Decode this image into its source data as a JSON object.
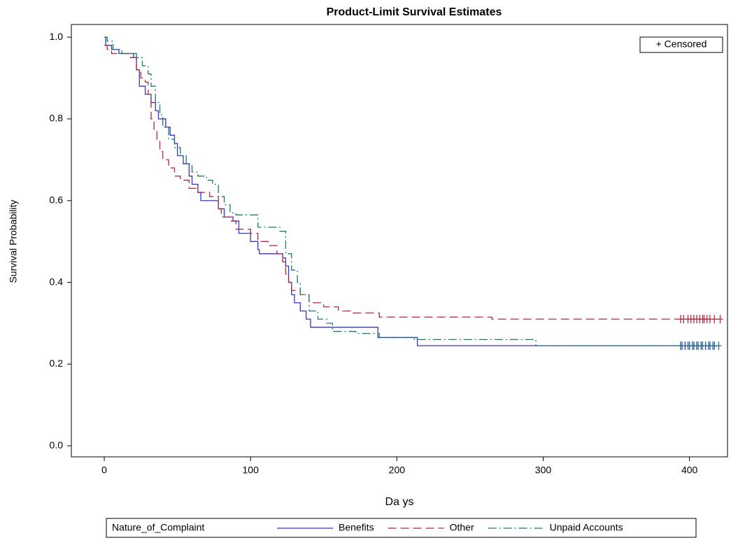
{
  "chart_data": {
    "type": "step",
    "title": "Product-Limit Survival Estimates",
    "x_label": "Da ys",
    "y_label": "Survival Probability",
    "legend_title": "Nature_of_Complaint",
    "censored_label": "+ Censored",
    "xlim": [
      -22.5,
      426
    ],
    "ylim": [
      -0.027,
      1.031
    ],
    "xticks": [
      0,
      100,
      200,
      300,
      400
    ],
    "yticks": [
      {
        "value": 0,
        "label": "0.0"
      },
      0.2,
      0.4,
      0.6,
      0.8,
      {
        "value": 1,
        "label": "1.0"
      }
    ],
    "series": [
      {
        "name": "Benefits",
        "color": "#3535c8",
        "dash": "solid",
        "x": [
          0,
          1,
          5,
          10,
          20,
          22,
          24,
          28,
          32,
          35,
          37,
          42,
          45,
          48,
          50,
          54,
          58,
          60,
          64,
          66,
          78,
          82,
          88,
          92,
          100,
          105,
          106,
          122,
          124,
          126,
          128,
          130,
          134,
          138,
          141,
          187,
          214,
          420
        ],
        "values": [
          1.0,
          0.98,
          0.97,
          0.96,
          0.95,
          0.92,
          0.88,
          0.86,
          0.84,
          0.82,
          0.8,
          0.78,
          0.76,
          0.74,
          0.71,
          0.69,
          0.66,
          0.64,
          0.62,
          0.6,
          0.58,
          0.56,
          0.55,
          0.52,
          0.5,
          0.48,
          0.47,
          0.46,
          0.44,
          0.4,
          0.37,
          0.35,
          0.33,
          0.31,
          0.29,
          0.265,
          0.245,
          0.245
        ],
        "censored_x": [
          394,
          397,
          400,
          403,
          405,
          408,
          411,
          414,
          417
        ]
      },
      {
        "name": "Other",
        "color": "#b0283c",
        "dash": "dashed",
        "x": [
          0,
          2,
          5,
          18,
          22,
          25,
          28,
          30,
          32,
          34,
          36,
          38,
          40,
          44,
          48,
          52,
          58,
          64,
          72,
          78,
          80,
          86,
          90,
          100,
          105,
          112,
          118,
          122,
          124,
          126,
          128,
          134,
          140,
          150,
          160,
          170,
          188,
          265,
          420
        ],
        "values": [
          0.98,
          0.97,
          0.96,
          0.95,
          0.92,
          0.9,
          0.89,
          0.86,
          0.8,
          0.77,
          0.75,
          0.72,
          0.7,
          0.68,
          0.66,
          0.65,
          0.63,
          0.62,
          0.61,
          0.58,
          0.56,
          0.55,
          0.53,
          0.52,
          0.5,
          0.49,
          0.47,
          0.45,
          0.42,
          0.4,
          0.38,
          0.37,
          0.35,
          0.34,
          0.33,
          0.325,
          0.315,
          0.31,
          0.31
        ],
        "censored_x": [
          394,
          396,
          399,
          401,
          403,
          405,
          407,
          409,
          410,
          412,
          414,
          417,
          421
        ]
      },
      {
        "name": "Unpaid Accounts",
        "color": "#177a6e",
        "dash": "dashdot",
        "x": [
          0,
          2,
          6,
          12,
          22,
          26,
          30,
          32,
          35,
          38,
          40,
          44,
          48,
          52,
          56,
          60,
          64,
          70,
          74,
          78,
          82,
          86,
          90,
          105,
          120,
          124,
          128,
          132,
          134,
          140,
          146,
          152,
          156,
          172,
          188,
          212,
          295,
          420
        ],
        "values": [
          1.0,
          0.99,
          0.97,
          0.96,
          0.95,
          0.93,
          0.91,
          0.88,
          0.84,
          0.81,
          0.78,
          0.75,
          0.73,
          0.71,
          0.69,
          0.67,
          0.66,
          0.65,
          0.64,
          0.61,
          0.59,
          0.57,
          0.565,
          0.535,
          0.525,
          0.47,
          0.43,
          0.4,
          0.37,
          0.33,
          0.31,
          0.3,
          0.28,
          0.275,
          0.265,
          0.26,
          0.245,
          0.245
        ],
        "censored_x": [
          395,
          399,
          402,
          406,
          409,
          413,
          416,
          420
        ]
      }
    ]
  }
}
